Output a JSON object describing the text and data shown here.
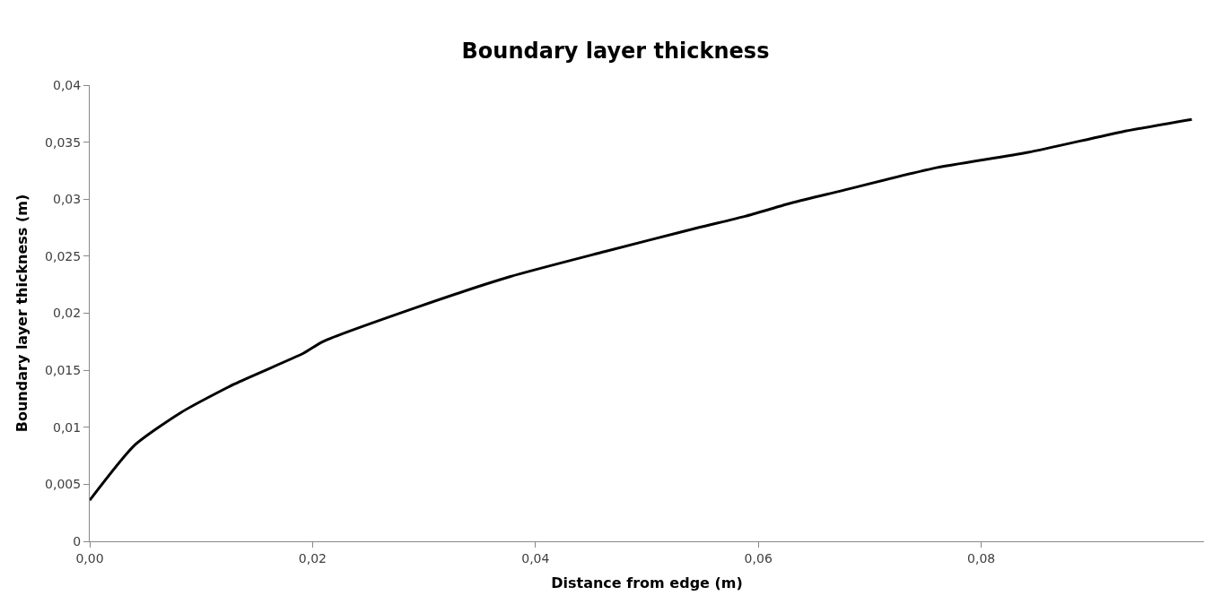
{
  "chart_data": {
    "type": "line",
    "title": "Boundary layer thickness",
    "xlabel": "Distance from edge (m)",
    "ylabel": "Boundary layer thickness (m)",
    "x": [
      0.0,
      0.004,
      0.0082,
      0.013,
      0.0192,
      0.0209,
      0.0293,
      0.0377,
      0.0462,
      0.0546,
      0.0588,
      0.0631,
      0.0673,
      0.0757,
      0.0842,
      0.0926,
      0.0989
    ],
    "series": [
      {
        "color": "#000000",
        "values": [
          0.0036,
          0.0084,
          0.0113,
          0.0138,
          0.0165,
          0.0175,
          0.0205,
          0.0232,
          0.0254,
          0.0275,
          0.0285,
          0.0297,
          0.0307,
          0.0327,
          0.0341,
          0.0359,
          0.037
        ]
      }
    ],
    "xlim": [
      0,
      0.1
    ],
    "ylim": [
      0,
      0.04
    ],
    "xticks": [
      {
        "value": 0,
        "label": "0,00"
      },
      {
        "value": 0.02,
        "label": "0,02"
      },
      {
        "value": 0.04,
        "label": "0,04"
      },
      {
        "value": 0.06,
        "label": "0,06"
      },
      {
        "value": 0.08,
        "label": "0,08"
      }
    ],
    "yticks": [
      {
        "value": 0,
        "label": "0"
      },
      {
        "value": 0.005,
        "label": "0,005"
      },
      {
        "value": 0.01,
        "label": "0,01"
      },
      {
        "value": 0.015,
        "label": "0,015"
      },
      {
        "value": 0.02,
        "label": "0,02"
      },
      {
        "value": 0.025,
        "label": "0,025"
      },
      {
        "value": 0.03,
        "label": "0,03"
      },
      {
        "value": 0.035,
        "label": "0,035"
      },
      {
        "value": 0.04,
        "label": "0,04"
      }
    ],
    "marker": "none",
    "line_style": "solid"
  }
}
